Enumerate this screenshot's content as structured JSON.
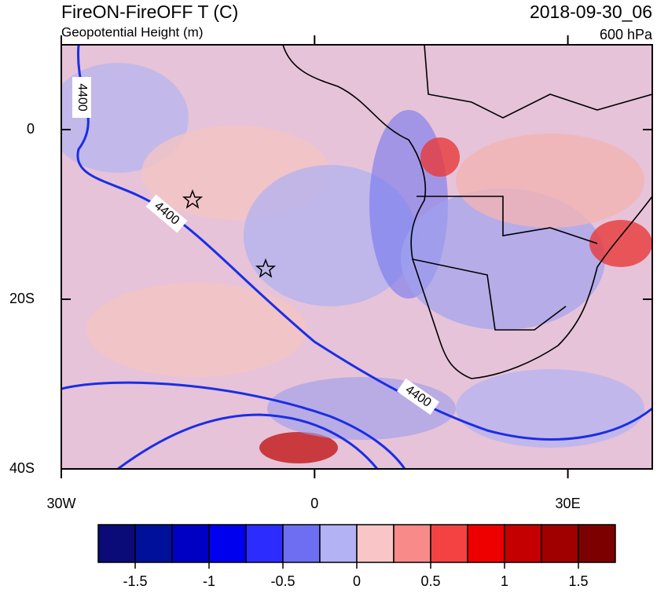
{
  "header": {
    "title": "FireON-FireOFF T (C)",
    "subtitle": "Geopotential Height (m)",
    "date": "2018-09-30_06",
    "level": "600 hPa"
  },
  "map": {
    "xlim": [
      -30,
      40
    ],
    "ylim": [
      -40,
      10
    ],
    "xticks": [
      {
        "value": -30,
        "label": "30W"
      },
      {
        "value": 0,
        "label": "0"
      },
      {
        "value": 30,
        "label": "30E"
      }
    ],
    "yticks": [
      {
        "value": 0,
        "label": "0"
      },
      {
        "value": -20,
        "label": "20S"
      },
      {
        "value": -40,
        "label": "40S"
      }
    ],
    "contour_labels": [
      "4400",
      "4400",
      "4400"
    ]
  },
  "colorbar": {
    "ticks": [
      -1.5,
      -1,
      -0.5,
      0,
      0.5,
      1,
      1.5
    ],
    "colors": [
      "#0a0a78",
      "#00109a",
      "#0000c4",
      "#0000ee",
      "#2c2cff",
      "#6e6ef2",
      "#b2b2f4",
      "#f8c6c6",
      "#f88a8a",
      "#f44242",
      "#ee0000",
      "#c40000",
      "#a00000",
      "#7c0000"
    ]
  }
}
